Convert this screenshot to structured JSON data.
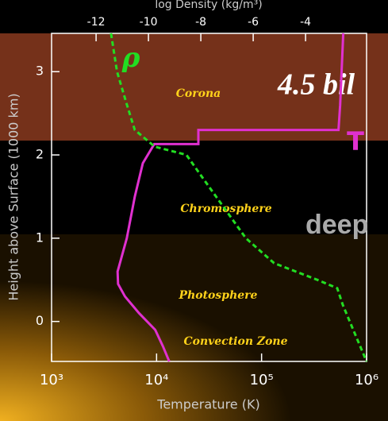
{
  "chart_data": {
    "type": "line",
    "xlabel": "Temperature (K)",
    "ylabel": "Height above Surface (1000 km)",
    "x2label": "log Density (kg/m³)",
    "xscale": "log",
    "xlim": [
      1000,
      1000000
    ],
    "xticks": [
      {
        "value": 1000,
        "label": "10³"
      },
      {
        "value": 10000,
        "label": "10⁴"
      },
      {
        "value": 100000,
        "label": "10⁵"
      },
      {
        "value": 1000000,
        "label": "10⁶"
      }
    ],
    "x2lim": [
      -13.7,
      -1.67
    ],
    "x2ticks": [
      -12,
      -10,
      -8,
      -6,
      -4
    ],
    "ylim": [
      -0.48,
      3.46
    ],
    "yticks": [
      0,
      1,
      2,
      3
    ],
    "series": [
      {
        "name": "T",
        "color": "#e030d0",
        "dash": false,
        "x": [
          600000,
          560000,
          540000,
          25000,
          25000,
          9500,
          7400,
          6200,
          5200,
          4250,
          4300,
          5000,
          6800,
          9700,
          11500,
          13200
        ],
        "values": [
          3.46,
          2.6,
          2.3,
          2.3,
          2.13,
          2.13,
          1.9,
          1.5,
          1.0,
          0.6,
          0.45,
          0.3,
          0.1,
          -0.1,
          -0.3,
          -0.48
        ]
      },
      {
        "name": "ρ",
        "color": "#22dd22",
        "dash": true,
        "axis": "x2",
        "x": [
          -11.43,
          -11.2,
          -10.82,
          -10.52,
          -9.76,
          -8.55,
          -8.1,
          -7.19,
          -6.28,
          -5.2,
          -3.55,
          -2.79,
          -2.58,
          -2.18,
          -1.67
        ],
        "values": [
          3.46,
          3.0,
          2.6,
          2.3,
          2.1,
          2.0,
          1.8,
          1.4,
          1.0,
          0.7,
          0.5,
          0.4,
          0.2,
          -0.1,
          -0.48
        ]
      }
    ],
    "regions": [
      "Corona",
      "Chromosphere",
      "Photosphere",
      "Convection Zone"
    ],
    "overlay": [
      "4.5 bil",
      "deep"
    ]
  }
}
